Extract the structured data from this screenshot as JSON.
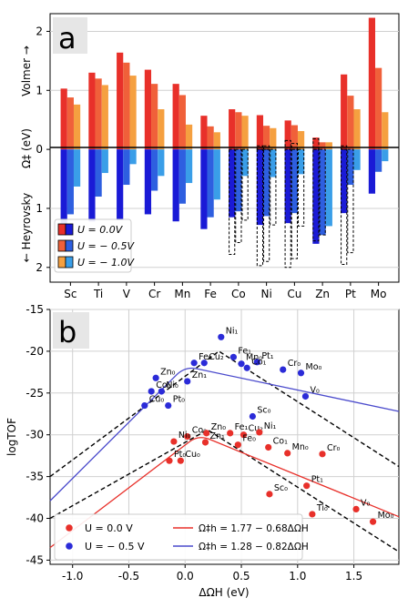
{
  "panels": {
    "a": "a",
    "b": "b"
  },
  "chart_data": [
    {
      "type": "bar",
      "panel_label": "a",
      "ylabel_parts": [
        "← Heyrovsky",
        "Ω‡ (eV)",
        "Volmer →"
      ],
      "ylim": [
        -2.25,
        2.3
      ],
      "y_ticks": [
        2,
        1,
        0,
        1,
        2
      ],
      "grid": true,
      "categories": [
        "Sc",
        "Ti",
        "V",
        "Cr",
        "Mn",
        "Fe",
        "Co",
        "Ni",
        "Cu",
        "Zn",
        "Pt",
        "Mo"
      ],
      "series": [
        {
          "name": "U = 0.0V",
          "color_volmer": "#e8302a",
          "color_heyrovsky": "#1a1ad6",
          "volmer": [
            1.03,
            1.3,
            1.64,
            1.35,
            1.11,
            0.57,
            0.68,
            0.58,
            0.49,
            0.2,
            1.27,
            2.23
          ],
          "heyrovsky": [
            -1.35,
            -1.22,
            -1.2,
            -1.1,
            -1.22,
            -1.35,
            -1.15,
            -1.28,
            -1.25,
            -1.6,
            -1.08,
            -0.75
          ]
        },
        {
          "name": "U = − 0.5V",
          "color_volmer": "#f0603a",
          "color_heyrovsky": "#2e5fe0",
          "volmer": [
            0.88,
            1.2,
            1.47,
            1.11,
            0.92,
            0.39,
            0.63,
            0.4,
            0.41,
            0.12,
            0.91,
            1.38
          ],
          "heyrovsky": [
            -1.1,
            -0.8,
            -0.6,
            -0.7,
            -0.92,
            -1.15,
            -1.05,
            -1.13,
            -1.08,
            -1.45,
            -0.6,
            -0.38
          ]
        },
        {
          "name": "U = − 1.0V",
          "color_volmer": "#f5a040",
          "color_heyrovsky": "#3a9ee8",
          "volmer": [
            0.76,
            1.09,
            1.25,
            0.68,
            0.42,
            0.29,
            0.57,
            0.36,
            0.31,
            0.12,
            0.68,
            0.63
          ],
          "heyrovsky": [
            -0.63,
            -0.4,
            -0.25,
            -0.45,
            -0.57,
            -0.85,
            -0.45,
            -0.47,
            -0.42,
            -1.3,
            -0.35,
            -0.2
          ]
        }
      ],
      "dashed_boxes_heyrovsky": [
        {
          "category": "Co",
          "series": 0,
          "value": -1.78
        },
        {
          "category": "Co",
          "series": 1,
          "value": -1.58
        },
        {
          "category": "Co",
          "series": 2,
          "value": -1.2
        },
        {
          "category": "Ni",
          "series": 0,
          "value": -1.97
        },
        {
          "category": "Ni",
          "series": 1,
          "value": -1.9
        },
        {
          "category": "Ni",
          "series": 2,
          "value": -1.28
        },
        {
          "category": "Cu",
          "series": 0,
          "value": -2.0
        },
        {
          "category": "Cu",
          "series": 1,
          "value": -1.85
        },
        {
          "category": "Cu",
          "series": 2,
          "value": -1.3
        },
        {
          "category": "Zn",
          "series": 0,
          "value": -1.55
        },
        {
          "category": "Zn",
          "series": 1,
          "value": -1.45
        },
        {
          "category": "Pt",
          "series": 0,
          "value": -1.95
        },
        {
          "category": "Pt",
          "series": 1,
          "value": -1.75
        }
      ],
      "dashed_boxes_volmer": [
        {
          "category": "Ni",
          "series": 0,
          "value": 0.06
        },
        {
          "category": "Ni",
          "series": 1,
          "value": 0.06
        },
        {
          "category": "Cu",
          "series": 0,
          "value": 0.15
        },
        {
          "category": "Cu",
          "series": 1,
          "value": 0.1
        },
        {
          "category": "Zn",
          "series": 0,
          "value": 0.18
        },
        {
          "category": "Pt",
          "series": 0,
          "value": 0.06
        }
      ],
      "legend": {
        "placement": "lower-left",
        "entries": [
          "U = 0.0V",
          "U = − 0.5V",
          "U = − 1.0V"
        ]
      }
    },
    {
      "type": "scatter",
      "panel_label": "b",
      "xlabel": "ΔΩH (eV)",
      "ylabel": "logTOF",
      "xlim": [
        -1.2,
        1.9
      ],
      "ylim": [
        -45.5,
        -15
      ],
      "x_ticks": [
        -1.0,
        -0.5,
        0.0,
        0.5,
        1.0,
        1.5
      ],
      "y_ticks": [
        -15,
        -20,
        -25,
        -30,
        -35,
        -40,
        -45
      ],
      "series": [
        {
          "name": "U = 0.0 V",
          "color": "#e8302a",
          "points": [
            {
              "label": "Co₀",
              "x": 0.02,
              "y": -30.2
            },
            {
              "label": "Zn₀",
              "x": 0.19,
              "y": -29.8
            },
            {
              "label": "Fe₁",
              "x": 0.4,
              "y": -29.8
            },
            {
              "label": "Cu₂",
              "x": 0.52,
              "y": -30.0
            },
            {
              "label": "Ni₁",
              "x": 0.66,
              "y": -29.7
            },
            {
              "label": "Ni₀",
              "x": -0.1,
              "y": -30.8
            },
            {
              "label": "Zn₁",
              "x": 0.18,
              "y": -30.9
            },
            {
              "label": "Fe₀",
              "x": 0.47,
              "y": -31.2
            },
            {
              "label": "Co₁",
              "x": 0.74,
              "y": -31.5
            },
            {
              "label": "Mn₀",
              "x": 0.91,
              "y": -32.2
            },
            {
              "label": "Cr₀",
              "x": 1.22,
              "y": -32.3
            },
            {
              "label": "Pt₀",
              "x": -0.14,
              "y": -33.1
            },
            {
              "label": "Cu₀",
              "x": -0.04,
              "y": -33.1
            },
            {
              "label": "Pt₁",
              "x": 1.08,
              "y": -36.1
            },
            {
              "label": "Sc₀",
              "x": 0.75,
              "y": -37.1
            },
            {
              "label": "Ti₀",
              "x": 1.13,
              "y": -39.5
            },
            {
              "label": "V₀",
              "x": 1.52,
              "y": -38.9
            },
            {
              "label": "Mo₀",
              "x": 1.67,
              "y": -40.4
            }
          ]
        },
        {
          "name": "U = − 0.5 V",
          "color": "#2b2bd8",
          "points": [
            {
              "label": "Ni₁",
              "x": 0.32,
              "y": -18.3
            },
            {
              "label": "Fe₁",
              "x": 0.43,
              "y": -20.7
            },
            {
              "label": "Fe₀",
              "x": 0.08,
              "y": -21.4
            },
            {
              "label": "Cu₂",
              "x": 0.17,
              "y": -21.4
            },
            {
              "label": "Mn₀",
              "x": 0.5,
              "y": -21.5
            },
            {
              "label": "Pt₁",
              "x": 0.64,
              "y": -21.3
            },
            {
              "label": "Co₁",
              "x": 0.55,
              "y": -22.0
            },
            {
              "label": "Cr₀",
              "x": 0.87,
              "y": -22.2
            },
            {
              "label": "Mo₀",
              "x": 1.03,
              "y": -22.6
            },
            {
              "label": "Zn₀",
              "x": -0.26,
              "y": -23.2
            },
            {
              "label": "Zn₁",
              "x": 0.02,
              "y": -23.6
            },
            {
              "label": "Co₀",
              "x": -0.3,
              "y": -24.8
            },
            {
              "label": "Ni₀",
              "x": -0.21,
              "y": -24.8
            },
            {
              "label": "V₀",
              "x": 1.07,
              "y": -25.4
            },
            {
              "label": "Sc₀",
              "x": 0.6,
              "y": -27.8
            },
            {
              "label": "Cu₀",
              "x": -0.36,
              "y": -26.5
            },
            {
              "label": "Pt₀",
              "x": -0.15,
              "y": -26.5
            }
          ]
        }
      ],
      "fit_lines": [
        {
          "label": "Ω‡h = 1.77 − 0.68ΔΩH",
          "color": "#e8302a",
          "peak_x": 0.12,
          "peak_y": -30.0,
          "left": [
            -1.2,
            -43.5
          ],
          "right": [
            1.9,
            -39.8
          ]
        },
        {
          "label": "Ω‡h = 1.28 − 0.82ΔΩH",
          "color": "#4a4acc",
          "peak_x": 0.0,
          "peak_y": -21.8,
          "left": [
            -1.2,
            -37.9
          ],
          "right": [
            1.9,
            -27.2
          ]
        }
      ],
      "dashed_volcanoes": [
        {
          "left": [
            -1.2,
            -35.0
          ],
          "peak": [
            0.3,
            -20.0
          ],
          "right": [
            1.9,
            -33.8
          ]
        },
        {
          "left": [
            -1.2,
            -40.0
          ],
          "peak": [
            0.2,
            -29.4
          ],
          "right": [
            1.9,
            -44.0
          ]
        }
      ],
      "legend": {
        "placement": "lower-left",
        "markers": [
          "U = 0.0 V",
          "U = − 0.5 V"
        ],
        "lines": [
          "Ω‡h = 1.77 − 0.68ΔΩH",
          "Ω‡h = 1.28 − 0.82ΔΩH"
        ]
      }
    }
  ]
}
